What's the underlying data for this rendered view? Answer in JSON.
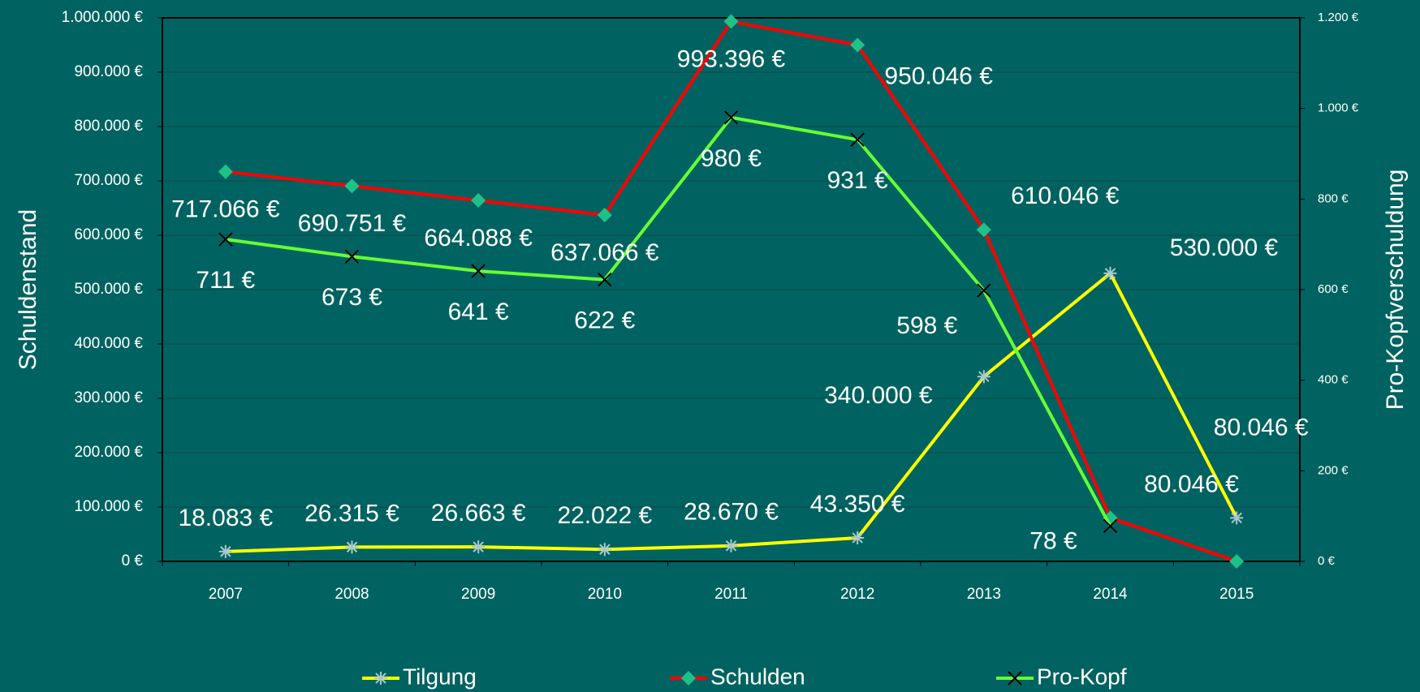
{
  "chart_data": {
    "type": "line",
    "categories": [
      "2007",
      "2008",
      "2009",
      "2010",
      "2011",
      "2012",
      "2013",
      "2014",
      "2015"
    ],
    "series": [
      {
        "name": "Tilgung",
        "color": "#ffff00",
        "marker_color": "#a8c8d0",
        "values": [
          18083,
          26315,
          26663,
          22022,
          28670,
          43350,
          340000,
          530000,
          80046
        ],
        "value_labels": [
          "18.083 €",
          "26.315 €",
          "26.663 €",
          "22.022 €",
          "28.670 €",
          "43.350 €",
          "340.000 €",
          "530.000 €",
          "80.046 €"
        ]
      },
      {
        "name": "Schulden",
        "color": "#ff0000",
        "marker_color": "#1fc18a",
        "values": [
          717066,
          690751,
          664088,
          637066,
          993396,
          950046,
          610046,
          80046,
          0
        ],
        "value_labels": [
          "717.066 €",
          "690.751 €",
          "664.088 €",
          "637.066 €",
          "993.396 €",
          "950.046 €",
          "610.046 €",
          "80.046 €",
          null
        ]
      },
      {
        "name": "Pro-Kopf",
        "color": "#66ff33",
        "marker_color": "#000000",
        "axis": "y2",
        "values": [
          711,
          673,
          641,
          622,
          980,
          931,
          598,
          78,
          null
        ],
        "value_labels": [
          "711 €",
          "673 €",
          "641 €",
          "622 €",
          "980 €",
          "931 €",
          "598 €",
          "78 €",
          null
        ]
      }
    ],
    "ylabel": "Schuldenstand",
    "y2label": "Pro-Kopfverschuldung",
    "ylim": [
      0,
      1000000
    ],
    "yticks": [
      {
        "value": 0,
        "label": "0 €"
      },
      {
        "value": 100000,
        "label": "100.000 €"
      },
      {
        "value": 200000,
        "label": "200.000 €"
      },
      {
        "value": 300000,
        "label": "300.000 €"
      },
      {
        "value": 400000,
        "label": "400.000 €"
      },
      {
        "value": 500000,
        "label": "500.000 €"
      },
      {
        "value": 600000,
        "label": "600.000 €"
      },
      {
        "value": 700000,
        "label": "700.000 €"
      },
      {
        "value": 800000,
        "label": "800.000 €"
      },
      {
        "value": 900000,
        "label": "900.000 €"
      },
      {
        "value": 1000000,
        "label": "1.000.000 €"
      }
    ],
    "y2lim": [
      0,
      1200
    ],
    "y2ticks": [
      {
        "value": 0,
        "label": "0 €"
      },
      {
        "value": 200,
        "label": "200 €"
      },
      {
        "value": 400,
        "label": "400 €"
      },
      {
        "value": 600,
        "label": "600 €"
      },
      {
        "value": 800,
        "label": "800 €"
      },
      {
        "value": 1000,
        "label": "1.000 €"
      },
      {
        "value": 1200,
        "label": "1.200 €"
      }
    ],
    "grid": true,
    "legend": "bottom"
  }
}
